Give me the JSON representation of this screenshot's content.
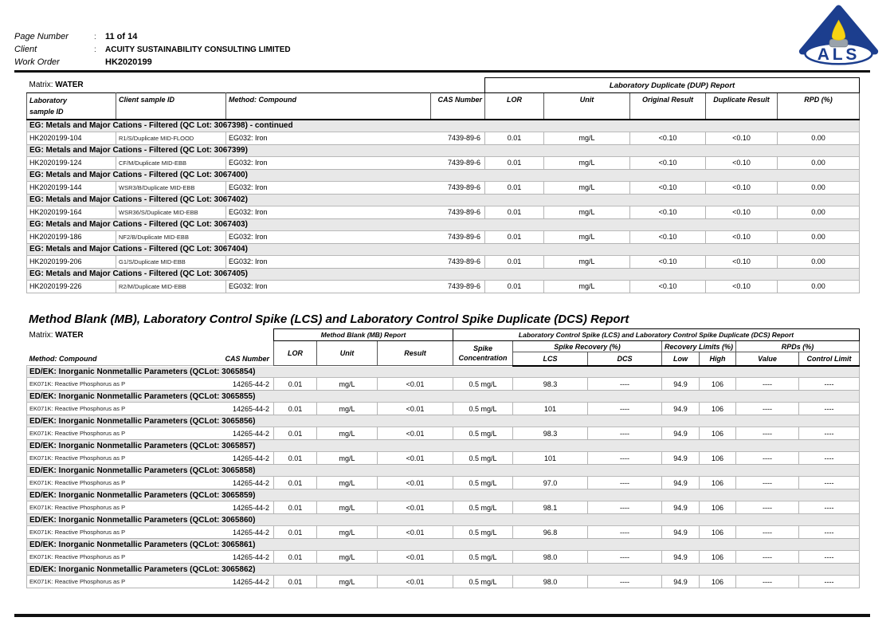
{
  "header": {
    "fields": [
      {
        "label": "Page Number",
        "sep": ":",
        "value": "11 of 14"
      },
      {
        "label": "Client",
        "sep": ":",
        "value": "ACUITY SUSTAINABILITY CONSULTING LIMITED"
      },
      {
        "label": "Work Order",
        "sep": "",
        "value": "HK2020199"
      }
    ],
    "logo_text": "ALS"
  },
  "dup_table": {
    "matrix_label": "Matrix: ",
    "matrix_value": "WATER",
    "span_header": "Laboratory Duplicate (DUP) Report",
    "columns": {
      "lab_id_line1": "Laboratory",
      "lab_id_line2": "sample ID",
      "client_id": "Client sample ID",
      "method": "Method: Compound",
      "cas": "CAS Number",
      "lor": "LOR",
      "unit": "Unit",
      "original": "Original Result",
      "duplicate": "Duplicate Result",
      "rpd": "RPD (%)"
    },
    "sections": [
      {
        "title": "EG: Metals and Major Cations - Filtered  (QC Lot: 3067398)  - continued",
        "rows": [
          {
            "lab_id": "HK2020199-104",
            "client_id": "R1/S/Duplicate MID-FLOOD",
            "method": "EG032: Iron",
            "cas": "7439-89-6",
            "lor": "0.01",
            "unit": "mg/L",
            "original": "<0.10",
            "duplicate": "<0.10",
            "rpd": "0.00"
          }
        ]
      },
      {
        "title": "EG: Metals and Major Cations - Filtered  (QC Lot: 3067399)",
        "rows": [
          {
            "lab_id": "HK2020199-124",
            "client_id": "CF/M/Duplicate MID-EBB",
            "method": "EG032: Iron",
            "cas": "7439-89-6",
            "lor": "0.01",
            "unit": "mg/L",
            "original": "<0.10",
            "duplicate": "<0.10",
            "rpd": "0.00"
          }
        ]
      },
      {
        "title": "EG: Metals and Major Cations - Filtered  (QC Lot: 3067400)",
        "rows": [
          {
            "lab_id": "HK2020199-144",
            "client_id": "WSR3/B/Duplicate MID-EBB",
            "method": "EG032: Iron",
            "cas": "7439-89-6",
            "lor": "0.01",
            "unit": "mg/L",
            "original": "<0.10",
            "duplicate": "<0.10",
            "rpd": "0.00"
          }
        ]
      },
      {
        "title": "EG: Metals and Major Cations - Filtered  (QC Lot: 3067402)",
        "rows": [
          {
            "lab_id": "HK2020199-164",
            "client_id": "WSR36/S/Duplicate MID-EBB",
            "method": "EG032: Iron",
            "cas": "7439-89-6",
            "lor": "0.01",
            "unit": "mg/L",
            "original": "<0.10",
            "duplicate": "<0.10",
            "rpd": "0.00"
          }
        ]
      },
      {
        "title": "EG: Metals and Major Cations - Filtered  (QC Lot: 3067403)",
        "rows": [
          {
            "lab_id": "HK2020199-186",
            "client_id": "NF2/B/Duplicate MID-EBB",
            "method": "EG032: Iron",
            "cas": "7439-89-6",
            "lor": "0.01",
            "unit": "mg/L",
            "original": "<0.10",
            "duplicate": "<0.10",
            "rpd": "0.00"
          }
        ]
      },
      {
        "title": "EG: Metals and Major Cations - Filtered  (QC Lot: 3067404)",
        "rows": [
          {
            "lab_id": "HK2020199-206",
            "client_id": "G1/S/Duplicate MID-EBB",
            "method": "EG032: Iron",
            "cas": "7439-89-6",
            "lor": "0.01",
            "unit": "mg/L",
            "original": "<0.10",
            "duplicate": "<0.10",
            "rpd": "0.00"
          }
        ]
      },
      {
        "title": "EG: Metals and Major Cations - Filtered  (QC Lot: 3067405)",
        "rows": [
          {
            "lab_id": "HK2020199-226",
            "client_id": "R2/M/Duplicate MID-EBB",
            "method": "EG032: Iron",
            "cas": "7439-89-6",
            "lor": "0.01",
            "unit": "mg/L",
            "original": "<0.10",
            "duplicate": "<0.10",
            "rpd": "0.00"
          }
        ]
      }
    ]
  },
  "mb_title": "Method Blank (MB), Laboratory Control Spike (LCS) and Laboratory Control Spike Duplicate (DCS) Report",
  "mb_table": {
    "matrix_label": "Matrix: ",
    "matrix_value": "WATER",
    "mb_span": "Method Blank (MB) Report",
    "lcs_span": "Laboratory Control Spike (LCS) and Laboratory Control Spike Duplicate (DCS) Report",
    "columns": {
      "method": "Method: Compound",
      "cas": "CAS Number",
      "lor": "LOR",
      "unit": "Unit",
      "result": "Result",
      "spike_line1": "Spike",
      "spike_line2": "Concentration",
      "spike_recovery": "Spike Recovery (%)",
      "recovery_limits": "Recovery Limits (%)",
      "rpds": "RPDs (%)",
      "lcs": "LCS",
      "dcs": "DCS",
      "low": "Low",
      "high": "High",
      "value": "Value",
      "control_limit": "Control Limit"
    },
    "sections": [
      {
        "title": "ED/EK: Inorganic Nonmetallic Parameters  (QCLot: 3065854)",
        "rows": [
          {
            "compound": "EK071K: Reactive Phosphorus as P",
            "cas": "14265-44-2",
            "lor": "0.01",
            "unit": "mg/L",
            "result": "<0.01",
            "spike_conc": "0.5 mg/L",
            "lcs": "98.3",
            "dcs": "----",
            "low": "94.9",
            "high": "106",
            "value": "----",
            "control_limit": "----"
          }
        ]
      },
      {
        "title": "ED/EK: Inorganic Nonmetallic Parameters  (QCLot: 3065855)",
        "rows": [
          {
            "compound": "EK071K: Reactive Phosphorus as P",
            "cas": "14265-44-2",
            "lor": "0.01",
            "unit": "mg/L",
            "result": "<0.01",
            "spike_conc": "0.5 mg/L",
            "lcs": "101",
            "dcs": "----",
            "low": "94.9",
            "high": "106",
            "value": "----",
            "control_limit": "----"
          }
        ]
      },
      {
        "title": "ED/EK: Inorganic Nonmetallic Parameters  (QCLot: 3065856)",
        "rows": [
          {
            "compound": "EK071K: Reactive Phosphorus as P",
            "cas": "14265-44-2",
            "lor": "0.01",
            "unit": "mg/L",
            "result": "<0.01",
            "spike_conc": "0.5 mg/L",
            "lcs": "98.3",
            "dcs": "----",
            "low": "94.9",
            "high": "106",
            "value": "----",
            "control_limit": "----"
          }
        ]
      },
      {
        "title": "ED/EK: Inorganic Nonmetallic Parameters  (QCLot: 3065857)",
        "rows": [
          {
            "compound": "EK071K: Reactive Phosphorus as P",
            "cas": "14265-44-2",
            "lor": "0.01",
            "unit": "mg/L",
            "result": "<0.01",
            "spike_conc": "0.5 mg/L",
            "lcs": "101",
            "dcs": "----",
            "low": "94.9",
            "high": "106",
            "value": "----",
            "control_limit": "----"
          }
        ]
      },
      {
        "title": "ED/EK: Inorganic Nonmetallic Parameters  (QCLot: 3065858)",
        "rows": [
          {
            "compound": "EK071K: Reactive Phosphorus as P",
            "cas": "14265-44-2",
            "lor": "0.01",
            "unit": "mg/L",
            "result": "<0.01",
            "spike_conc": "0.5 mg/L",
            "lcs": "97.0",
            "dcs": "----",
            "low": "94.9",
            "high": "106",
            "value": "----",
            "control_limit": "----"
          }
        ]
      },
      {
        "title": "ED/EK: Inorganic Nonmetallic Parameters  (QCLot: 3065859)",
        "rows": [
          {
            "compound": "EK071K: Reactive Phosphorus as P",
            "cas": "14265-44-2",
            "lor": "0.01",
            "unit": "mg/L",
            "result": "<0.01",
            "spike_conc": "0.5 mg/L",
            "lcs": "98.1",
            "dcs": "----",
            "low": "94.9",
            "high": "106",
            "value": "----",
            "control_limit": "----"
          }
        ]
      },
      {
        "title": "ED/EK: Inorganic Nonmetallic Parameters  (QCLot: 3065860)",
        "rows": [
          {
            "compound": "EK071K: Reactive Phosphorus as P",
            "cas": "14265-44-2",
            "lor": "0.01",
            "unit": "mg/L",
            "result": "<0.01",
            "spike_conc": "0.5 mg/L",
            "lcs": "96.8",
            "dcs": "----",
            "low": "94.9",
            "high": "106",
            "value": "----",
            "control_limit": "----"
          }
        ]
      },
      {
        "title": "ED/EK: Inorganic Nonmetallic Parameters  (QCLot: 3065861)",
        "rows": [
          {
            "compound": "EK071K: Reactive Phosphorus as P",
            "cas": "14265-44-2",
            "lor": "0.01",
            "unit": "mg/L",
            "result": "<0.01",
            "spike_conc": "0.5 mg/L",
            "lcs": "98.0",
            "dcs": "----",
            "low": "94.9",
            "high": "106",
            "value": "----",
            "control_limit": "----"
          }
        ]
      },
      {
        "title": "ED/EK: Inorganic Nonmetallic Parameters  (QCLot: 3065862)",
        "rows": [
          {
            "compound": "EK071K: Reactive Phosphorus as P",
            "cas": "14265-44-2",
            "lor": "0.01",
            "unit": "mg/L",
            "result": "<0.01",
            "spike_conc": "0.5 mg/L",
            "lcs": "98.0",
            "dcs": "----",
            "low": "94.9",
            "high": "106",
            "value": "----",
            "control_limit": "----"
          }
        ]
      }
    ]
  }
}
